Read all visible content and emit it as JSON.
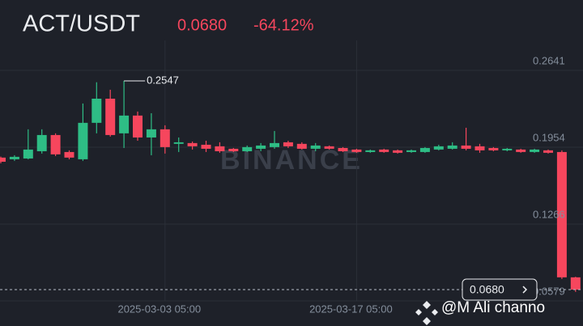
{
  "header": {
    "symbol": "ACT/USDT",
    "price": "0.0680",
    "change": "-64.12%"
  },
  "chart_data": {
    "type": "candlestick",
    "categories": [
      null,
      null,
      null,
      null,
      null,
      null,
      null,
      null,
      null,
      null,
      null,
      null,
      "2025-03-03 05:00",
      null,
      null,
      null,
      null,
      null,
      null,
      null,
      null,
      null,
      null,
      null,
      null,
      null,
      "2025-03-17 05:00",
      null,
      null,
      null,
      null,
      null,
      null,
      null,
      null,
      null,
      null,
      null,
      null,
      null,
      null,
      null,
      null
    ],
    "open": [
      0.1861,
      0.1846,
      0.1853,
      0.1918,
      0.2063,
      0.1911,
      0.1846,
      0.2172,
      0.2388,
      0.2078,
      0.2237,
      0.2041,
      0.2114,
      0.1984,
      0.1991,
      0.1976,
      0.1962,
      0.194,
      0.1918,
      0.194,
      0.1955,
      0.1998,
      0.1984,
      0.194,
      0.1962,
      0.1947,
      0.1933,
      0.1911,
      0.1933,
      0.1926,
      0.1911,
      0.1911,
      0.1933,
      0.194,
      0.1969,
      0.1962,
      0.1947,
      0.1926,
      0.1933,
      0.1911,
      0.1926,
      0.1911,
      0.079
    ],
    "high": [
      0.187,
      0.1882,
      0.2114,
      0.2114,
      0.2078,
      0.1926,
      0.2345,
      0.2535,
      0.2468,
      0.2547,
      0.2273,
      0.2258,
      0.215,
      0.2041,
      0.2005,
      0.2012,
      0.1998,
      0.1947,
      0.1969,
      0.1991,
      0.2099,
      0.2012,
      0.1998,
      0.1991,
      0.1969,
      0.1955,
      0.194,
      0.1933,
      0.194,
      0.1933,
      0.1933,
      0.1955,
      0.1976,
      0.1998,
      0.2128,
      0.1984,
      0.1955,
      0.1947,
      0.194,
      0.194,
      0.1933,
      0.1926,
      0.0795
    ],
    "low": [
      0.181,
      0.1832,
      0.1846,
      0.1897,
      0.1875,
      0.1846,
      0.1832,
      0.2078,
      0.2049,
      0.1947,
      0.2012,
      0.1882,
      0.1897,
      0.1911,
      0.1933,
      0.1911,
      0.1904,
      0.1911,
      0.1911,
      0.1918,
      0.194,
      0.1947,
      0.1933,
      0.1918,
      0.1933,
      0.1911,
      0.1904,
      0.1904,
      0.1904,
      0.1897,
      0.1904,
      0.1904,
      0.1926,
      0.1933,
      0.1926,
      0.1904,
      0.1918,
      0.1918,
      0.1904,
      0.1904,
      0.1897,
      0.0775,
      0.066
    ],
    "close": [
      0.1824,
      0.1868,
      0.1933,
      0.2063,
      0.189,
      0.1861,
      0.2172,
      0.2388,
      0.2063,
      0.2237,
      0.2041,
      0.2114,
      0.1955,
      0.1998,
      0.1962,
      0.194,
      0.1918,
      0.1918,
      0.1955,
      0.1969,
      0.1991,
      0.1962,
      0.194,
      0.1969,
      0.194,
      0.1918,
      0.1911,
      0.1926,
      0.1911,
      0.1904,
      0.1926,
      0.1947,
      0.1962,
      0.1969,
      0.194,
      0.1926,
      0.1926,
      0.194,
      0.1911,
      0.1933,
      0.1904,
      0.079,
      0.068
    ],
    "up_color": "#2ebd85",
    "down_color": "#f6465d",
    "ylim": [
      0.0579,
      0.2909
    ],
    "yticks": [
      0.2641,
      0.1954,
      0.1266,
      0.0579
    ],
    "grid": true,
    "max_label": 0.2547,
    "last_price": {
      "value": 0.068,
      "label": "0.0680"
    },
    "watermark": "BINANCE",
    "credit": "@M Ali channo"
  }
}
